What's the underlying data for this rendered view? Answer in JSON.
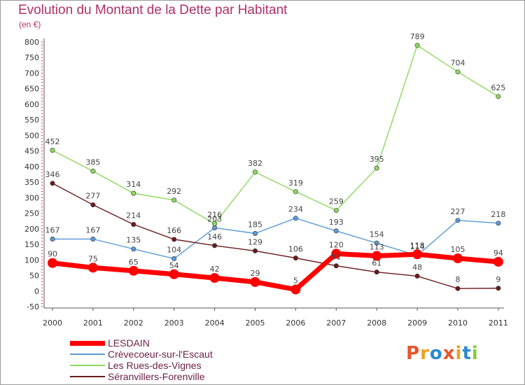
{
  "title": "Evolution du Montant de la Dette par Habitant",
  "subtitle": "(en €)",
  "logo": {
    "text": "Proxiti",
    "letters": [
      "P",
      "r",
      "o",
      "x",
      "i",
      "t",
      "i"
    ],
    "colors": [
      "#e8542c",
      "#f0a020",
      "#2a8ad0",
      "#e8542c",
      "#f0a020",
      "#2a8ad0",
      "#8ac840"
    ]
  },
  "chart_data": {
    "type": "line",
    "categories": [
      "2000",
      "2001",
      "2002",
      "2003",
      "2004",
      "2005",
      "2006",
      "2007",
      "2008",
      "2009",
      "2010",
      "2011"
    ],
    "ylim": [
      -50,
      800
    ],
    "yticks": [
      "-50",
      "0",
      "50",
      "100",
      "150",
      "200",
      "250",
      "300",
      "350",
      "400",
      "450",
      "500",
      "550",
      "600",
      "650",
      "700",
      "750",
      "800"
    ],
    "series": [
      {
        "name": "LESDAIN",
        "color": "#ff0000",
        "values": [
          90,
          75,
          65,
          54,
          42,
          29,
          5,
          120,
          113,
          118,
          105,
          94
        ]
      },
      {
        "name": "Crèvecoeur-sur-l'Escaut",
        "color": "#5b9bd5",
        "values": [
          167,
          167,
          135,
          104,
          203,
          185,
          234,
          193,
          154,
          114,
          227,
          218
        ]
      },
      {
        "name": "Les Rues-des-Vignes",
        "color": "#8ed860",
        "values": [
          452,
          385,
          314,
          292,
          216,
          382,
          319,
          259,
          395,
          789,
          704,
          625
        ]
      },
      {
        "name": "Séranvillers-Forenville",
        "color": "#6b1b1b",
        "values": [
          346,
          277,
          214,
          166,
          146,
          129,
          106,
          81,
          61,
          48,
          8,
          9
        ]
      }
    ],
    "data_labels": [
      [
        "90",
        "75",
        "65",
        "54",
        "42",
        "29",
        "5",
        "120",
        "113",
        "118",
        "105",
        "94"
      ],
      [
        "167",
        "167",
        "135",
        "104",
        "203",
        "185",
        "234",
        "193",
        "154",
        "114",
        "227",
        "218"
      ],
      [
        "452",
        "385",
        "314",
        "292",
        "216",
        "382",
        "319",
        "259",
        "395",
        "789",
        "704",
        "625"
      ],
      [
        "346",
        "277",
        "214",
        "166",
        "146",
        "129",
        "106",
        "81",
        "61",
        "48",
        "8",
        "9"
      ]
    ],
    "grid": false,
    "legend_position": "bottom-left"
  }
}
